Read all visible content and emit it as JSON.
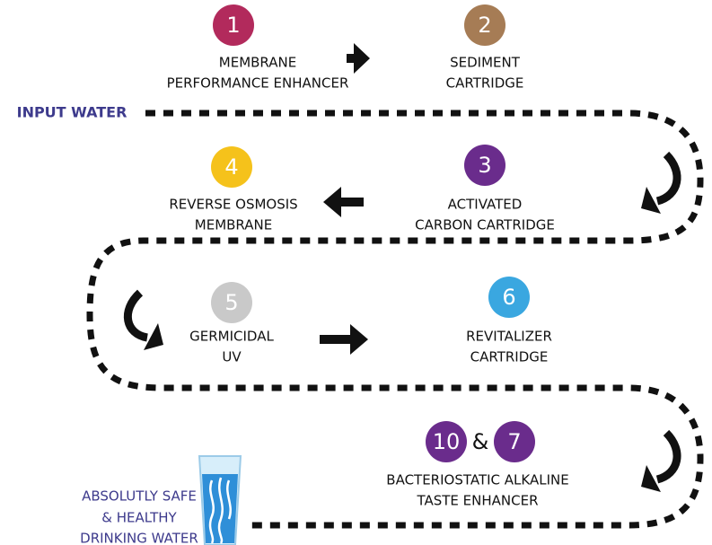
{
  "input_label": "INPUT WATER",
  "steps": [
    {
      "number": "1",
      "lines": [
        "MEMBRANE",
        "PERFORMANCE ENHANCER"
      ]
    },
    {
      "number": "2",
      "lines": [
        "SEDIMENT",
        "CARTRIDGE"
      ]
    },
    {
      "number": "3",
      "lines": [
        "ACTIVATED",
        "CARBON CARTRIDGE"
      ]
    },
    {
      "number": "4",
      "lines": [
        "REVERSE OSMOSIS",
        "MEMBRANE"
      ]
    },
    {
      "number": "5",
      "lines": [
        "GERMICIDAL",
        "UV"
      ]
    },
    {
      "number": "6",
      "lines": [
        "REVITALIZER",
        "CARTRIDGE"
      ]
    },
    {
      "numbers": [
        "10",
        "7"
      ],
      "joiner": "&",
      "lines": [
        "BACTERIOSTATIC ALKALINE",
        "TASTE ENHANCER"
      ]
    }
  ],
  "output_lines": [
    "ABSOLUTLY SAFE",
    "& HEALTHY",
    "DRINKING WATER"
  ]
}
